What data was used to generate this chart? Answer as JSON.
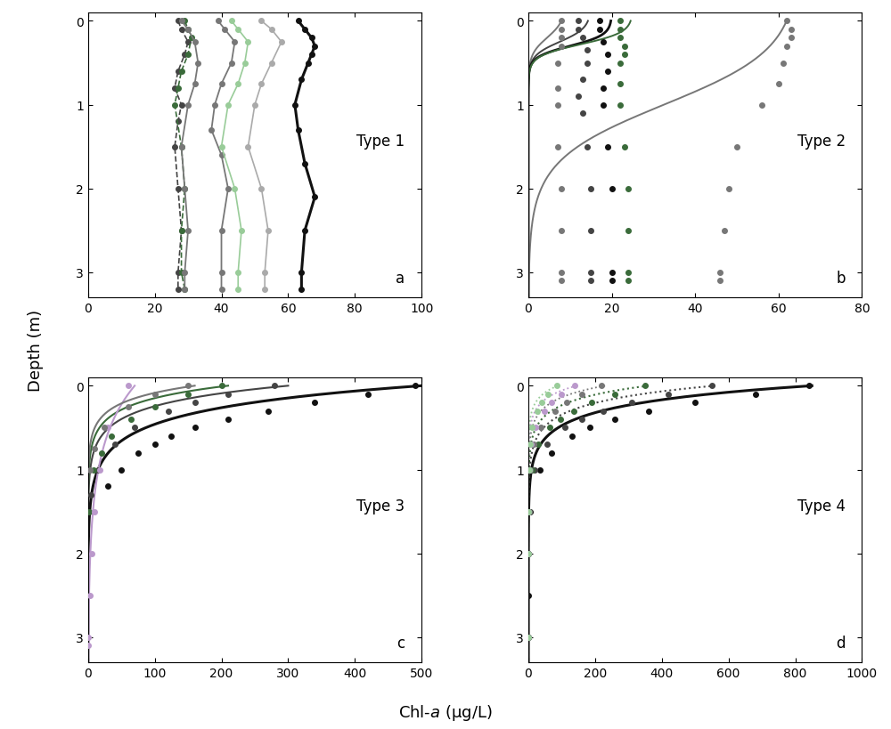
{
  "xlabel": "Chl-α (μg/L)",
  "ylabel": "Depth (m)",
  "background_color": "#ffffff",
  "colors": {
    "black": "#111111",
    "dark_gray": "#444444",
    "medium_gray": "#777777",
    "light_gray": "#aaaaaa",
    "very_light_gray": "#cccccc",
    "dark_green": "#3a6b3a",
    "medium_green": "#6aaa6a",
    "light_green": "#99cc99",
    "purple": "#7a5a9a",
    "light_purple": "#bb99cc"
  },
  "panel_a": {
    "label": "a",
    "type": "Type 1",
    "xlim": [
      0,
      100
    ],
    "ylim": [
      3.3,
      -0.1
    ],
    "xticks": [
      0,
      20,
      40,
      60,
      80,
      100
    ],
    "yticks": [
      0,
      1,
      2,
      3
    ],
    "series": [
      {
        "depths": [
          0,
          0.1,
          0.25,
          0.4,
          0.6,
          0.8,
          1.0,
          1.2,
          1.5,
          2.0,
          2.5,
          3.0,
          3.2
        ],
        "chl": [
          27,
          28,
          30,
          29,
          27,
          26,
          28,
          27,
          26,
          27,
          28,
          27,
          27
        ],
        "color": "dark_gray",
        "linestyle": "--",
        "marker": "o",
        "lw": 1.2
      },
      {
        "depths": [
          0,
          0.1,
          0.2,
          0.4,
          0.6,
          0.8,
          1.0,
          1.5,
          2.0,
          2.5,
          3.0,
          3.2
        ],
        "chl": [
          29,
          30,
          31,
          30,
          28,
          27,
          26,
          28,
          29,
          28,
          28,
          29
        ],
        "color": "dark_green",
        "linestyle": "--",
        "marker": "o",
        "lw": 1.2
      },
      {
        "depths": [
          0,
          0.1,
          0.25,
          0.5,
          0.75,
          1.0,
          1.5,
          2.0,
          2.5,
          3.0,
          3.2
        ],
        "chl": [
          28,
          30,
          32,
          33,
          32,
          30,
          28,
          29,
          30,
          29,
          29
        ],
        "color": "medium_gray",
        "linestyle": "-",
        "marker": "o",
        "lw": 1.3
      },
      {
        "depths": [
          0,
          0.1,
          0.25,
          0.5,
          0.75,
          1.0,
          1.3,
          1.6,
          2.0,
          2.5,
          3.0,
          3.2
        ],
        "chl": [
          39,
          41,
          44,
          43,
          40,
          38,
          37,
          40,
          42,
          40,
          40,
          40
        ],
        "color": "medium_gray",
        "linestyle": "-",
        "marker": "o",
        "lw": 1.3
      },
      {
        "depths": [
          0,
          0.1,
          0.25,
          0.5,
          0.75,
          1.0,
          1.5,
          2.0,
          2.5,
          3.0,
          3.2
        ],
        "chl": [
          43,
          45,
          48,
          47,
          45,
          42,
          40,
          44,
          46,
          45,
          45
        ],
        "color": "light_green",
        "linestyle": "-",
        "marker": "o",
        "lw": 1.2
      },
      {
        "depths": [
          0,
          0.1,
          0.25,
          0.5,
          0.75,
          1.0,
          1.5,
          2.0,
          2.5,
          3.0,
          3.2
        ],
        "chl": [
          52,
          55,
          58,
          55,
          52,
          50,
          48,
          52,
          54,
          53,
          53
        ],
        "color": "light_gray",
        "linestyle": "-",
        "marker": "o",
        "lw": 1.2
      },
      {
        "depths": [
          0,
          0.1,
          0.2,
          0.3,
          0.4,
          0.5,
          0.7,
          1.0,
          1.3,
          1.7,
          2.1,
          2.5,
          3.0,
          3.2
        ],
        "chl": [
          63,
          65,
          67,
          68,
          67,
          66,
          64,
          62,
          63,
          65,
          68,
          65,
          64,
          64
        ],
        "color": "black",
        "linestyle": "-",
        "marker": "o",
        "lw": 2.2
      }
    ]
  },
  "panel_b": {
    "label": "b",
    "type": "Type 2",
    "xlim": [
      0,
      80
    ],
    "ylim": [
      3.3,
      -0.1
    ],
    "xticks": [
      0,
      20,
      40,
      60,
      80
    ],
    "yticks": [
      0,
      1,
      2,
      3
    ],
    "series": [
      {
        "pts_d": [
          0,
          0.1,
          0.2,
          0.3,
          0.5,
          0.8,
          1.0,
          1.5,
          2.0,
          2.5,
          3.0,
          3.1
        ],
        "pts_x": [
          8,
          8,
          8,
          8,
          7,
          7,
          7,
          7,
          8,
          8,
          8,
          8
        ],
        "curve_params": {
          "type": "sigmoid",
          "surf": 9,
          "k": 10,
          "mid": 0.2
        },
        "color": "medium_gray",
        "lw": 1.4
      },
      {
        "pts_d": [
          0,
          0.1,
          0.2,
          0.35,
          0.5,
          0.7,
          0.9,
          1.1,
          1.5,
          2.0,
          2.5,
          3.0,
          3.1
        ],
        "pts_x": [
          12,
          12,
          13,
          14,
          14,
          13,
          12,
          13,
          14,
          15,
          15,
          15,
          15
        ],
        "curve_params": {
          "type": "sigmoid",
          "surf": 15,
          "k": 12,
          "mid": 0.25
        },
        "color": "dark_gray",
        "lw": 1.4
      },
      {
        "pts_d": [
          0,
          0.1,
          0.25,
          0.4,
          0.6,
          0.8,
          1.0,
          1.5,
          2.0,
          3.0,
          3.1
        ],
        "pts_x": [
          17,
          17,
          18,
          19,
          19,
          18,
          18,
          19,
          20,
          20,
          20
        ],
        "curve_params": {
          "type": "sigmoid",
          "surf": 20,
          "k": 15,
          "mid": 0.3
        },
        "color": "black",
        "lw": 2.0
      },
      {
        "pts_d": [
          0,
          0.1,
          0.2,
          0.3,
          0.4,
          0.5,
          0.75,
          1.0,
          1.5,
          2.0,
          2.5,
          3.0,
          3.1
        ],
        "pts_x": [
          22,
          22,
          22,
          23,
          23,
          22,
          22,
          22,
          23,
          24,
          24,
          24,
          24
        ],
        "curve_params": {
          "type": "sigmoid",
          "surf": 25,
          "k": 14,
          "mid": 0.28
        },
        "color": "dark_green",
        "lw": 1.4
      },
      {
        "pts_d": [
          0,
          0.1,
          0.2,
          0.3,
          0.5,
          0.75,
          1.0,
          1.5,
          2.0,
          2.5,
          3.0,
          3.1
        ],
        "pts_x": [
          62,
          63,
          63,
          62,
          61,
          60,
          56,
          50,
          48,
          47,
          46,
          46
        ],
        "curve_params": {
          "type": "sigmoid",
          "surf": 65,
          "k": 3,
          "mid": 1.0
        },
        "color": "medium_gray",
        "lw": 1.4
      }
    ]
  },
  "panel_c": {
    "label": "c",
    "type": "Type 3",
    "xlim": [
      0,
      500
    ],
    "ylim": [
      3.3,
      -0.1
    ],
    "xticks": [
      0,
      100,
      200,
      300,
      400,
      500
    ],
    "yticks": [
      0,
      1,
      2,
      3
    ],
    "series": [
      {
        "pts_d": [
          0,
          0.1,
          0.2,
          0.3,
          0.4,
          0.5,
          0.6,
          0.7,
          0.8,
          1.0,
          1.2
        ],
        "pts_x": [
          490,
          420,
          340,
          270,
          210,
          160,
          125,
          100,
          75,
          50,
          30
        ],
        "curve_params": {
          "type": "power",
          "A": 500,
          "k": 3.5
        },
        "color": "black",
        "lw": 2.2
      },
      {
        "pts_d": [
          0,
          0.1,
          0.2,
          0.3,
          0.5,
          0.7,
          1.0,
          1.3
        ],
        "pts_x": [
          280,
          210,
          160,
          120,
          70,
          40,
          15,
          5
        ],
        "curve_params": {
          "type": "power",
          "A": 300,
          "k": 4.5
        },
        "color": "dark_gray",
        "lw": 1.5
      },
      {
        "pts_d": [
          0,
          0.1,
          0.25,
          0.4,
          0.6,
          0.8,
          1.0,
          1.5
        ],
        "pts_x": [
          200,
          150,
          100,
          65,
          35,
          20,
          8,
          2
        ],
        "curve_params": {
          "type": "power",
          "A": 210,
          "k": 5.0
        },
        "color": "dark_green",
        "lw": 1.5
      },
      {
        "pts_d": [
          0,
          0.5,
          1.0,
          1.5,
          2.0,
          2.5,
          3.0,
          3.1
        ],
        "pts_x": [
          60,
          30,
          18,
          10,
          6,
          3,
          1,
          0.5
        ],
        "curve_params": {
          "type": "power",
          "A": 70,
          "k": 1.5
        },
        "color": "light_purple",
        "lw": 1.5
      },
      {
        "pts_d": [
          0,
          0.1,
          0.25,
          0.5,
          0.75,
          1.0
        ],
        "pts_x": [
          150,
          100,
          60,
          25,
          10,
          3
        ],
        "curve_params": {
          "type": "power",
          "A": 160,
          "k": 5.5
        },
        "color": "medium_gray",
        "lw": 1.5
      }
    ]
  },
  "panel_d": {
    "label": "d",
    "type": "Type 4",
    "xlim": [
      0,
      1000
    ],
    "ylim": [
      3.3,
      -0.1
    ],
    "xticks": [
      0,
      200,
      400,
      600,
      800,
      1000
    ],
    "yticks": [
      0,
      1,
      2,
      3
    ],
    "series": [
      {
        "pts_d": [
          0,
          0.1,
          0.2,
          0.3,
          0.4,
          0.5,
          0.6,
          0.8,
          1.0,
          1.5,
          2.0,
          2.5,
          3.0
        ],
        "pts_x": [
          840,
          680,
          500,
          360,
          260,
          185,
          130,
          70,
          35,
          6,
          1,
          0.3,
          0.1
        ],
        "curve_params": {
          "type": "exp",
          "A": 850,
          "k": 4.5
        },
        "color": "black",
        "linestyle": "-",
        "lw": 2.2
      },
      {
        "pts_d": [
          0,
          0.1,
          0.2,
          0.3,
          0.4,
          0.5,
          0.7,
          1.0,
          1.5,
          2.0,
          3.0
        ],
        "pts_x": [
          550,
          420,
          310,
          225,
          160,
          110,
          55,
          20,
          4,
          0.8,
          0.1
        ],
        "curve_params": {
          "type": "exp",
          "A": 560,
          "k": 5.0
        },
        "color": "dark_gray",
        "linestyle": ":",
        "lw": 1.5
      },
      {
        "pts_d": [
          0,
          0.1,
          0.2,
          0.3,
          0.4,
          0.5,
          0.7,
          1.0,
          1.5,
          2.0,
          3.0
        ],
        "pts_x": [
          350,
          260,
          190,
          135,
          95,
          65,
          30,
          10,
          2,
          0.5,
          0.05
        ],
        "curve_params": {
          "type": "exp",
          "A": 360,
          "k": 5.5
        },
        "color": "dark_green",
        "linestyle": ":",
        "lw": 1.5
      },
      {
        "pts_d": [
          0,
          0.1,
          0.2,
          0.3,
          0.5,
          0.7,
          1.0,
          1.5,
          2.0,
          3.0
        ],
        "pts_x": [
          220,
          160,
          115,
          80,
          38,
          17,
          6,
          1.5,
          0.4,
          0.05
        ],
        "curve_params": {
          "type": "exp",
          "A": 230,
          "k": 6.0
        },
        "color": "medium_gray",
        "linestyle": ":",
        "lw": 1.3
      },
      {
        "pts_d": [
          0,
          0.1,
          0.2,
          0.3,
          0.5,
          0.7,
          1.0,
          1.5,
          2.0,
          3.0
        ],
        "pts_x": [
          140,
          100,
          70,
          48,
          22,
          9,
          3,
          0.8,
          0.2,
          0.03
        ],
        "curve_params": {
          "type": "exp",
          "A": 145,
          "k": 6.5
        },
        "color": "light_purple",
        "linestyle": ":",
        "lw": 1.3
      },
      {
        "pts_d": [
          0,
          0.1,
          0.2,
          0.3,
          0.5,
          0.7,
          1.0,
          1.5,
          2.0,
          3.0
        ],
        "pts_x": [
          85,
          60,
          40,
          27,
          12,
          5,
          1.5,
          0.4,
          0.1,
          0.02
        ],
        "curve_params": {
          "type": "exp",
          "A": 88,
          "k": 7.0
        },
        "color": "light_green",
        "linestyle": ":",
        "lw": 1.3
      }
    ]
  }
}
